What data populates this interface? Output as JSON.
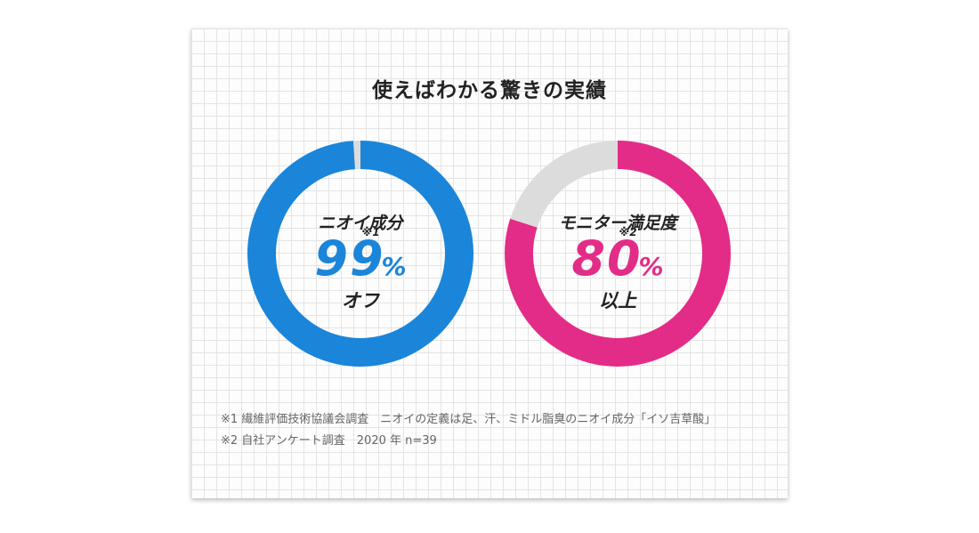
{
  "title": "使えばわかる驚きの実績",
  "colors": {
    "blue": "#1a85d9",
    "pink": "#e32c87",
    "remainder": "#dcdcdc"
  },
  "chart_data": [
    {
      "type": "pie",
      "category": "ニオイ成分",
      "value": 99,
      "remainder": 1,
      "value_text": "99",
      "unit": "%",
      "footnote_mark": "※1",
      "suffix": "オフ",
      "color": "#1a85d9"
    },
    {
      "type": "pie",
      "category": "モニター満足度",
      "value": 80,
      "remainder": 20,
      "value_text": "80",
      "unit": "%",
      "footnote_mark": "※2",
      "suffix": "以上",
      "color": "#e32c87"
    }
  ],
  "footnotes": [
    "※1 繊維評価技術協議会調査　ニオイの定義は足、汗、ミドル脂臭のニオイ成分「イソ吉草酸」",
    "※2 自社アンケート調査　2020 年 n=39"
  ]
}
